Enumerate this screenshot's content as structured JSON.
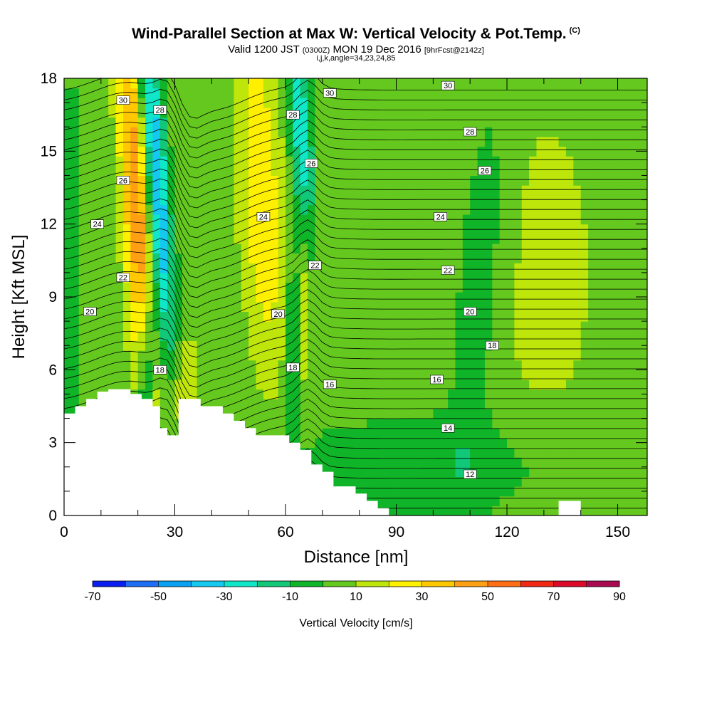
{
  "header": {
    "title": "Wind-Parallel Section at Max W: Vertical Velocity & Pot.Temp.",
    "title_mark": "(C)",
    "subtitle_a": "Valid 1200 JST",
    "subtitle_b": "(0300Z)",
    "subtitle_c": "MON 19 Dec 2016",
    "subtitle_d": "[9hrFcst@2142z]",
    "indices": "i,j,k,angle=34,23,24,85"
  },
  "chart_data": {
    "type": "heatmap",
    "xlabel": "Distance [nm]",
    "ylabel": "Height [Kft MSL]",
    "xlim": [
      0,
      158
    ],
    "ylim": [
      0,
      18
    ],
    "xticks": [
      0,
      30,
      60,
      90,
      120,
      150
    ],
    "yticks": [
      0,
      3,
      6,
      9,
      12,
      15,
      18
    ],
    "grid": false,
    "colorbar": {
      "title": "Vertical Velocity [cm/s]",
      "levels": [
        -70,
        -60,
        -50,
        -40,
        -30,
        -20,
        -10,
        0,
        10,
        20,
        30,
        40,
        50,
        60,
        70,
        80,
        90
      ],
      "tick_labels": [
        "-70",
        "-50",
        "-30",
        "-10",
        "10",
        "30",
        "50",
        "70",
        "90"
      ],
      "colors": [
        "#0a1ef0",
        "#1e6ef5",
        "#0aa0f0",
        "#14c8f0",
        "#10e6c8",
        "#10c878",
        "#10b428",
        "#64c81e",
        "#bee60a",
        "#fff000",
        "#ffc800",
        "#ffa014",
        "#ff6e14",
        "#f02814",
        "#dc0a28",
        "#aa0a50",
        "#6e0a82"
      ]
    },
    "theta_contour_labels": [
      {
        "x": 16,
        "y": 17.1,
        "text": "30"
      },
      {
        "x": 26,
        "y": 16.7,
        "text": "28"
      },
      {
        "x": 72,
        "y": 17.4,
        "text": "30"
      },
      {
        "x": 104,
        "y": 17.7,
        "text": "30"
      },
      {
        "x": 62,
        "y": 16.5,
        "text": "28"
      },
      {
        "x": 110,
        "y": 15.8,
        "text": "28"
      },
      {
        "x": 16,
        "y": 13.8,
        "text": "26"
      },
      {
        "x": 67,
        "y": 14.5,
        "text": "26"
      },
      {
        "x": 114,
        "y": 14.2,
        "text": "26"
      },
      {
        "x": 9,
        "y": 12.0,
        "text": "24"
      },
      {
        "x": 54,
        "y": 12.3,
        "text": "24"
      },
      {
        "x": 102,
        "y": 12.3,
        "text": "24"
      },
      {
        "x": 16,
        "y": 9.8,
        "text": "22"
      },
      {
        "x": 68,
        "y": 10.3,
        "text": "22"
      },
      {
        "x": 104,
        "y": 10.1,
        "text": "22"
      },
      {
        "x": 7,
        "y": 8.4,
        "text": "20"
      },
      {
        "x": 58,
        "y": 8.3,
        "text": "20"
      },
      {
        "x": 110,
        "y": 8.4,
        "text": "20"
      },
      {
        "x": 116,
        "y": 7.0,
        "text": "18"
      },
      {
        "x": 26,
        "y": 6.0,
        "text": "18"
      },
      {
        "x": 62,
        "y": 6.1,
        "text": "18"
      },
      {
        "x": 72,
        "y": 5.4,
        "text": "16"
      },
      {
        "x": 101,
        "y": 5.6,
        "text": "16"
      },
      {
        "x": 104,
        "y": 3.6,
        "text": "14"
      },
      {
        "x": 110,
        "y": 1.7,
        "text": "12"
      }
    ]
  }
}
